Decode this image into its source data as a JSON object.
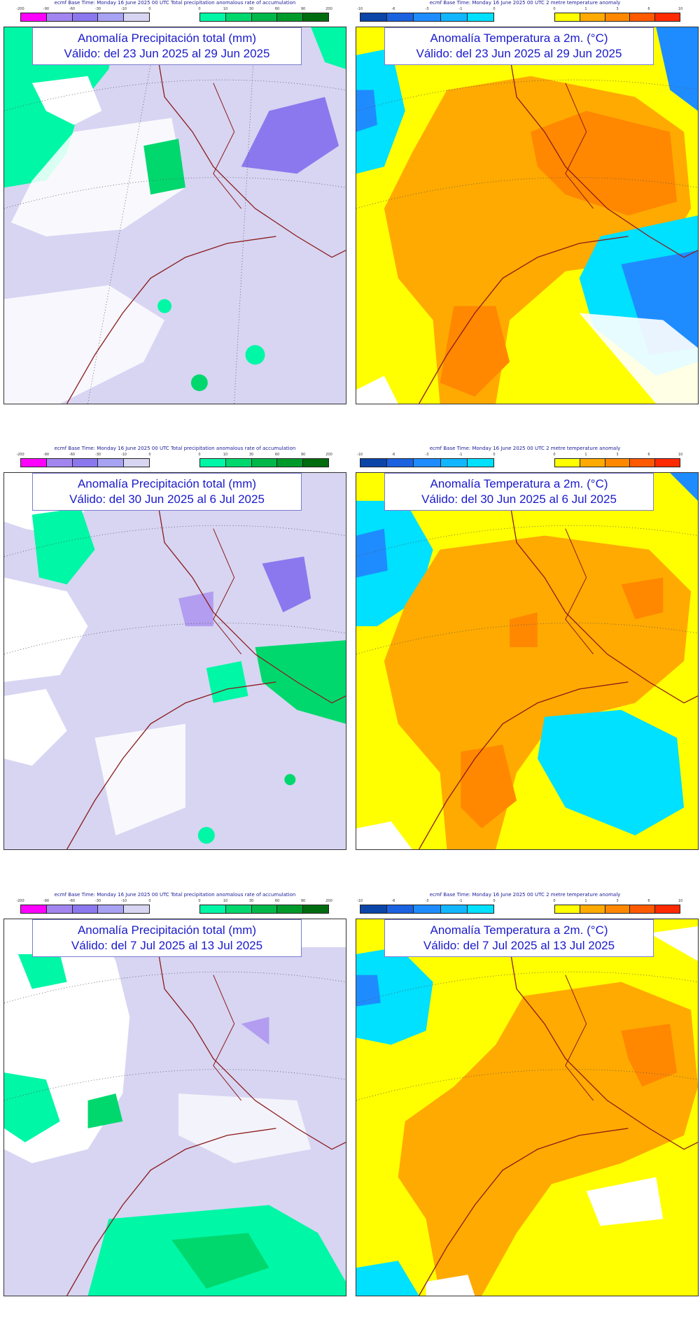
{
  "colors": {
    "precip_neg": [
      "#ff00ff",
      "#a385f0",
      "#8b78ee",
      "#a8a2f4",
      "#d7d5f2"
    ],
    "precip_pos": [
      "#00f7a6",
      "#00d86e",
      "#00b84a",
      "#009a2a",
      "#006c10"
    ],
    "temp_neg": [
      "#0b45a8",
      "#1b62e0",
      "#1e8cff",
      "#12b6ff",
      "#00e0ff"
    ],
    "temp_pos": [
      "#ffff00",
      "#ffaa00",
      "#ff8800",
      "#ff5a00",
      "#ff2a00"
    ]
  },
  "header": {
    "precip": "ecmf  Base Time: Monday 16 June 2025 00 UTC Total precipitation anomalous rate of accumulation",
    "temp": "ecmf  Base Time: Monday 16 June 2025 00 UTC 2 metre temperature anomaly"
  },
  "colorbar_ticks": {
    "precip_neg": [
      "-200",
      "-90",
      "-60",
      "-30",
      "-10",
      "0"
    ],
    "precip_pos": [
      "0",
      "10",
      "30",
      "60",
      "90",
      "200"
    ],
    "temp_neg": [
      "-10",
      "-6",
      "-3",
      "-1",
      "0"
    ],
    "temp_pos": [
      "0",
      "1",
      "3",
      "6",
      "10"
    ]
  },
  "maps": [
    {
      "title_line1": "Anomalía Precipitación total (mm)",
      "title_line2": "Válido: del 23 Jun 2025 al 29 Jun 2025"
    },
    {
      "title_line1": "Anomalía Temperatura a 2m. (°C)",
      "title_line2": "Válido: del 23 Jun 2025 al 29 Jun 2025"
    },
    {
      "title_line1": "Anomalía Precipitación total (mm)",
      "title_line2": "Válido: del 30 Jun 2025 al 6 Jul 2025"
    },
    {
      "title_line1": "Anomalía Temperatura a 2m. (°C)",
      "title_line2": "Válido: del 30 Jun 2025 al 6 Jul 2025"
    },
    {
      "title_line1": "Anomalía Precipitación total (mm)",
      "title_line2": "Válido: del 7 Jul 2025 al 13 Jul 2025"
    },
    {
      "title_line1": "Anomalía Temperatura a 2m. (°C)",
      "title_line2": "Válido: del 7 Jul 2025 al 13 Jul 2025"
    }
  ]
}
